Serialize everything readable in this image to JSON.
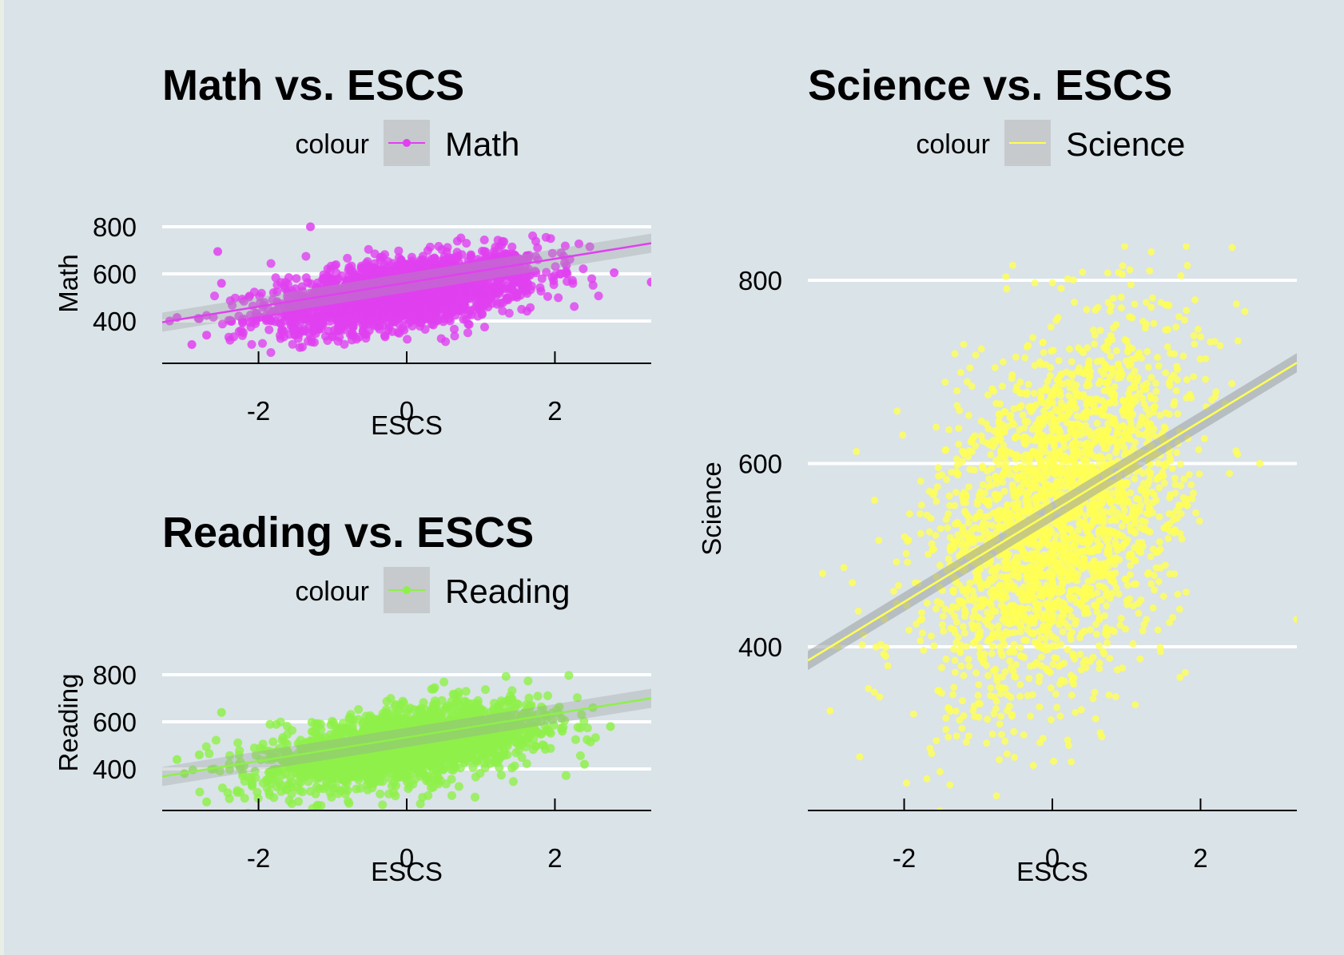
{
  "chart_data": [
    {
      "type": "scatter",
      "title": "Math vs. ESCS",
      "xlabel": "ESCS",
      "ylabel": "Math",
      "xlim": [
        -3.3,
        3.3
      ],
      "ylim": [
        230,
        840
      ],
      "xticks": [
        -2,
        0,
        2
      ],
      "yticks": [
        400,
        600,
        800
      ],
      "grid": "horizontal-major",
      "legend": {
        "title": "colour",
        "position": "top",
        "entries": [
          "Math"
        ]
      },
      "color": "#e040f0",
      "trend": {
        "method": "linear",
        "x": [
          -3.3,
          3.3
        ],
        "y": [
          395,
          730
        ]
      },
      "series": [
        {
          "name": "Math",
          "cloud": {
            "x_mean": 0.0,
            "x_sd": 0.9,
            "y_mean": 520,
            "y_sd": 72,
            "slope": 45
          },
          "x": [
            -3.2,
            -3.1,
            -2.9,
            -2.8,
            -2.7,
            -2.55,
            -2.5,
            -1.3,
            2.8,
            3.3
          ],
          "y": [
            400,
            415,
            300,
            410,
            340,
            695,
            560,
            800,
            605,
            565
          ]
        }
      ]
    },
    {
      "type": "scatter",
      "title": "Reading vs. ESCS",
      "xlabel": "ESCS",
      "ylabel": "Reading",
      "xlim": [
        -3.3,
        3.3
      ],
      "ylim": [
        230,
        840
      ],
      "xticks": [
        -2,
        0,
        2
      ],
      "yticks": [
        400,
        600,
        800
      ],
      "grid": "horizontal-major",
      "legend": {
        "title": "colour",
        "position": "top",
        "entries": [
          "Reading"
        ]
      },
      "color": "#8ef04a",
      "trend": {
        "method": "linear",
        "x": [
          -3.3,
          3.3
        ],
        "y": [
          368,
          700
        ]
      },
      "series": [
        {
          "name": "Reading",
          "cloud": {
            "x_mean": 0.0,
            "x_sd": 0.9,
            "y_mean": 500,
            "y_sd": 75,
            "slope": 48
          },
          "x": [
            -3.1,
            -3.0,
            -2.8,
            -2.7,
            -2.6,
            -2.5,
            2.1,
            2.4,
            2.75
          ],
          "y": [
            440,
            380,
            460,
            260,
            400,
            640,
            560,
            420,
            580
          ]
        }
      ]
    },
    {
      "type": "scatter",
      "title": "Science vs. ESCS",
      "xlabel": "ESCS",
      "ylabel": "Science",
      "xlim": [
        -3.3,
        3.3
      ],
      "ylim": [
        230,
        840
      ],
      "xticks": [
        -2,
        0,
        2
      ],
      "yticks": [
        400,
        600,
        800
      ],
      "grid": "horizontal-major",
      "legend": {
        "title": "colour",
        "position": "top",
        "entries": [
          "Science"
        ]
      },
      "color": "#ffff55",
      "trend": {
        "method": "linear",
        "x": [
          -3.3,
          3.3
        ],
        "y": [
          385,
          710
        ]
      },
      "series": [
        {
          "name": "Science",
          "cloud": {
            "x_mean": 0.1,
            "x_sd": 0.85,
            "y_mean": 545,
            "y_sd": 95,
            "slope": 50
          },
          "x": [
            -3.1,
            -3.0,
            -2.9,
            -2.7,
            -2.6,
            -2.4,
            2.5,
            2.8,
            3.3
          ],
          "y": [
            480,
            330,
            400,
            470,
            280,
            560,
            610,
            600,
            430
          ]
        }
      ]
    }
  ]
}
